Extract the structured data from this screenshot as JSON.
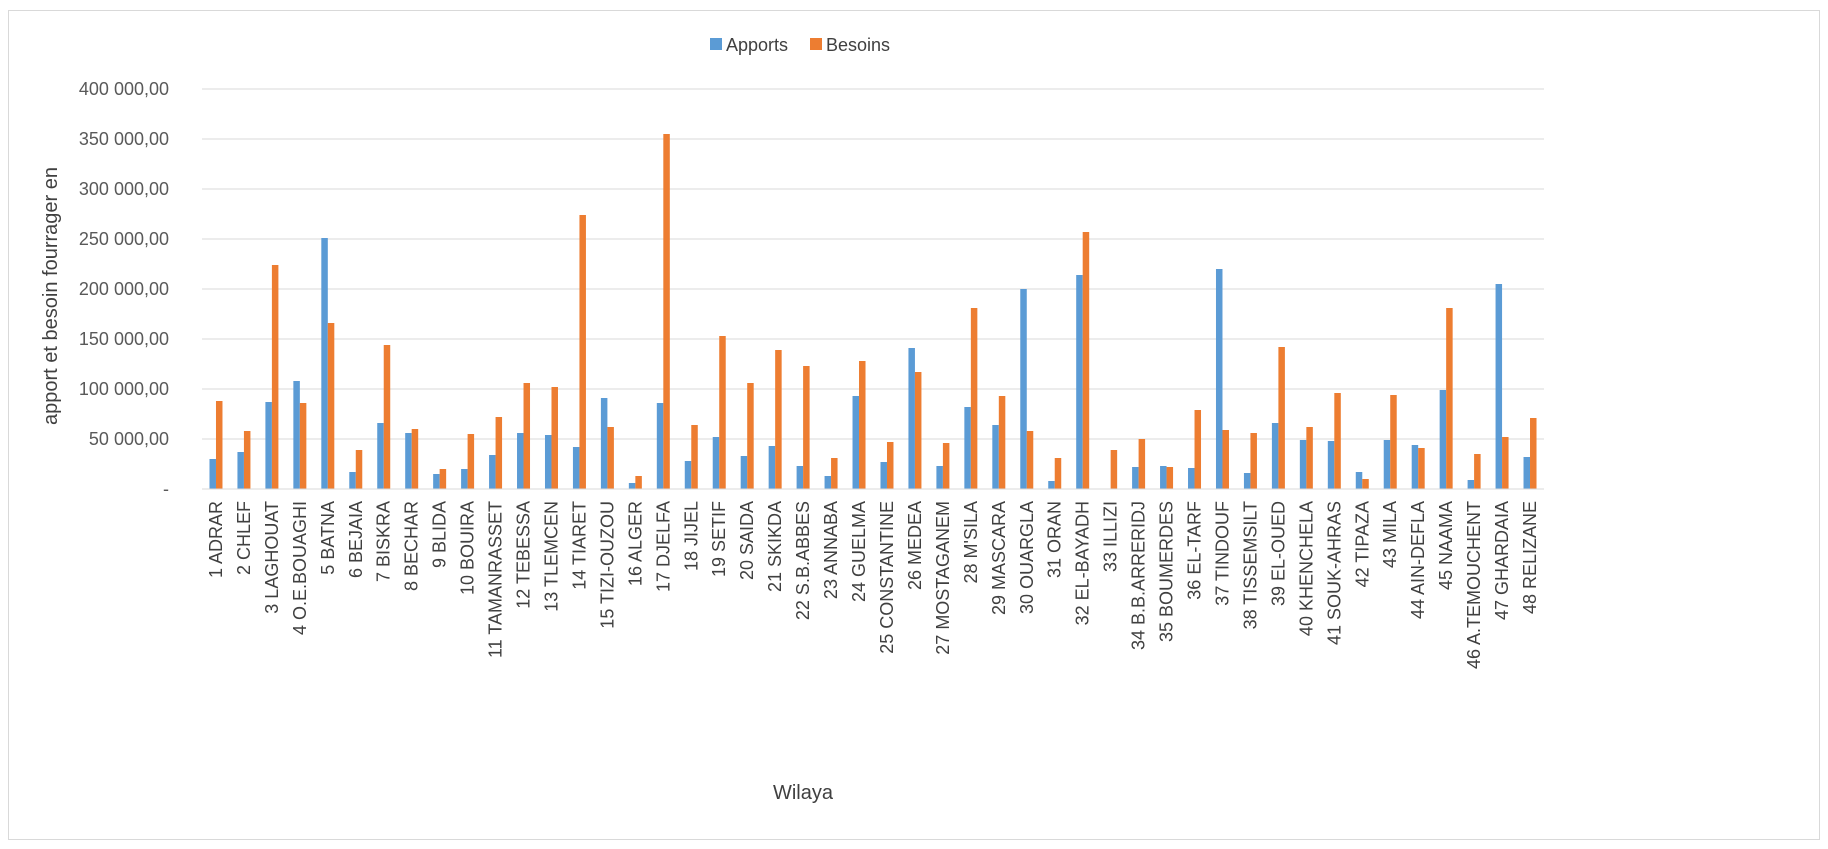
{
  "chart_data": {
    "type": "bar",
    "xlabel": "Wilaya",
    "ylabel": "apport et besoin fourrager en",
    "ylim": [
      0,
      400000
    ],
    "yticks": [
      0,
      50000,
      100000,
      150000,
      200000,
      250000,
      300000,
      350000,
      400000
    ],
    "ytick_labels": [
      "-",
      "50 000,00",
      "100 000,00",
      "150 000,00",
      "200 000,00",
      "250 000,00",
      "300 000,00",
      "350 000,00",
      "400 000,00"
    ],
    "grid": true,
    "legend_position": "top",
    "categories": [
      "1 ADRAR",
      "2 CHLEF",
      "3 LAGHOUAT",
      "4 O.E.BOUAGHI",
      "5 BATNA",
      "6 BEJAIA",
      "7 BISKRA",
      "8 BECHAR",
      "9 BLIDA",
      "10 BOUIRA",
      "11 TAMANRASSET",
      "12 TEBESSA",
      "13 TLEMCEN",
      "14 TIARET",
      "15 TIZI-OUZOU",
      "16 ALGER",
      "17 DJELFA",
      "18 JIJEL",
      "19 SETIF",
      "20 SAIDA",
      "21 SKIKDA",
      "22 S.B.ABBES",
      "23 ANNABA",
      "24 GUELMA",
      "25 CONSTANTINE",
      "26 MEDEA",
      "27 MOSTAGANEM",
      "28 M'SILA",
      "29 MASCARA",
      "30 OUARGLA",
      "31 ORAN",
      "32 EL-BAYADH",
      "33 ILLIZI",
      "34 B.B.ARRERIDJ",
      "35 BOUMERDES",
      "36 EL-TARF",
      "37 TINDOUF",
      "38 TISSEMSILT",
      "39 EL-OUED",
      "40 KHENCHELA",
      "41 SOUK-AHRAS",
      "42 TIPAZA",
      "43 MILA",
      "44 AIN-DEFLA",
      "45 NAAMA",
      "46 A.TEMOUCHENT",
      "47 GHARDAIA",
      "48 RELIZANE"
    ],
    "series": [
      {
        "name": "Apports",
        "color": "#5B9BD5",
        "values": [
          30000,
          37000,
          87000,
          108000,
          251000,
          17000,
          66000,
          56000,
          15000,
          20000,
          34000,
          56000,
          54000,
          42000,
          91000,
          6000,
          86000,
          28000,
          52000,
          33000,
          43000,
          23000,
          13000,
          93000,
          27000,
          141000,
          23000,
          82000,
          64000,
          200000,
          8000,
          214000,
          0,
          22000,
          23000,
          21000,
          220000,
          16000,
          66000,
          49000,
          48000,
          17000,
          49000,
          44000,
          99000,
          9000,
          205000,
          32000
        ]
      },
      {
        "name": "Besoins",
        "color": "#ED7D31",
        "values": [
          88000,
          58000,
          224000,
          86000,
          166000,
          39000,
          144000,
          60000,
          20000,
          55000,
          72000,
          106000,
          102000,
          274000,
          62000,
          13000,
          355000,
          64000,
          153000,
          106000,
          139000,
          123000,
          31000,
          128000,
          47000,
          117000,
          46000,
          181000,
          93000,
          58000,
          31000,
          257000,
          39000,
          50000,
          22000,
          79000,
          59000,
          56000,
          142000,
          62000,
          96000,
          10000,
          94000,
          41000,
          181000,
          35000,
          52000,
          71000
        ]
      }
    ]
  }
}
